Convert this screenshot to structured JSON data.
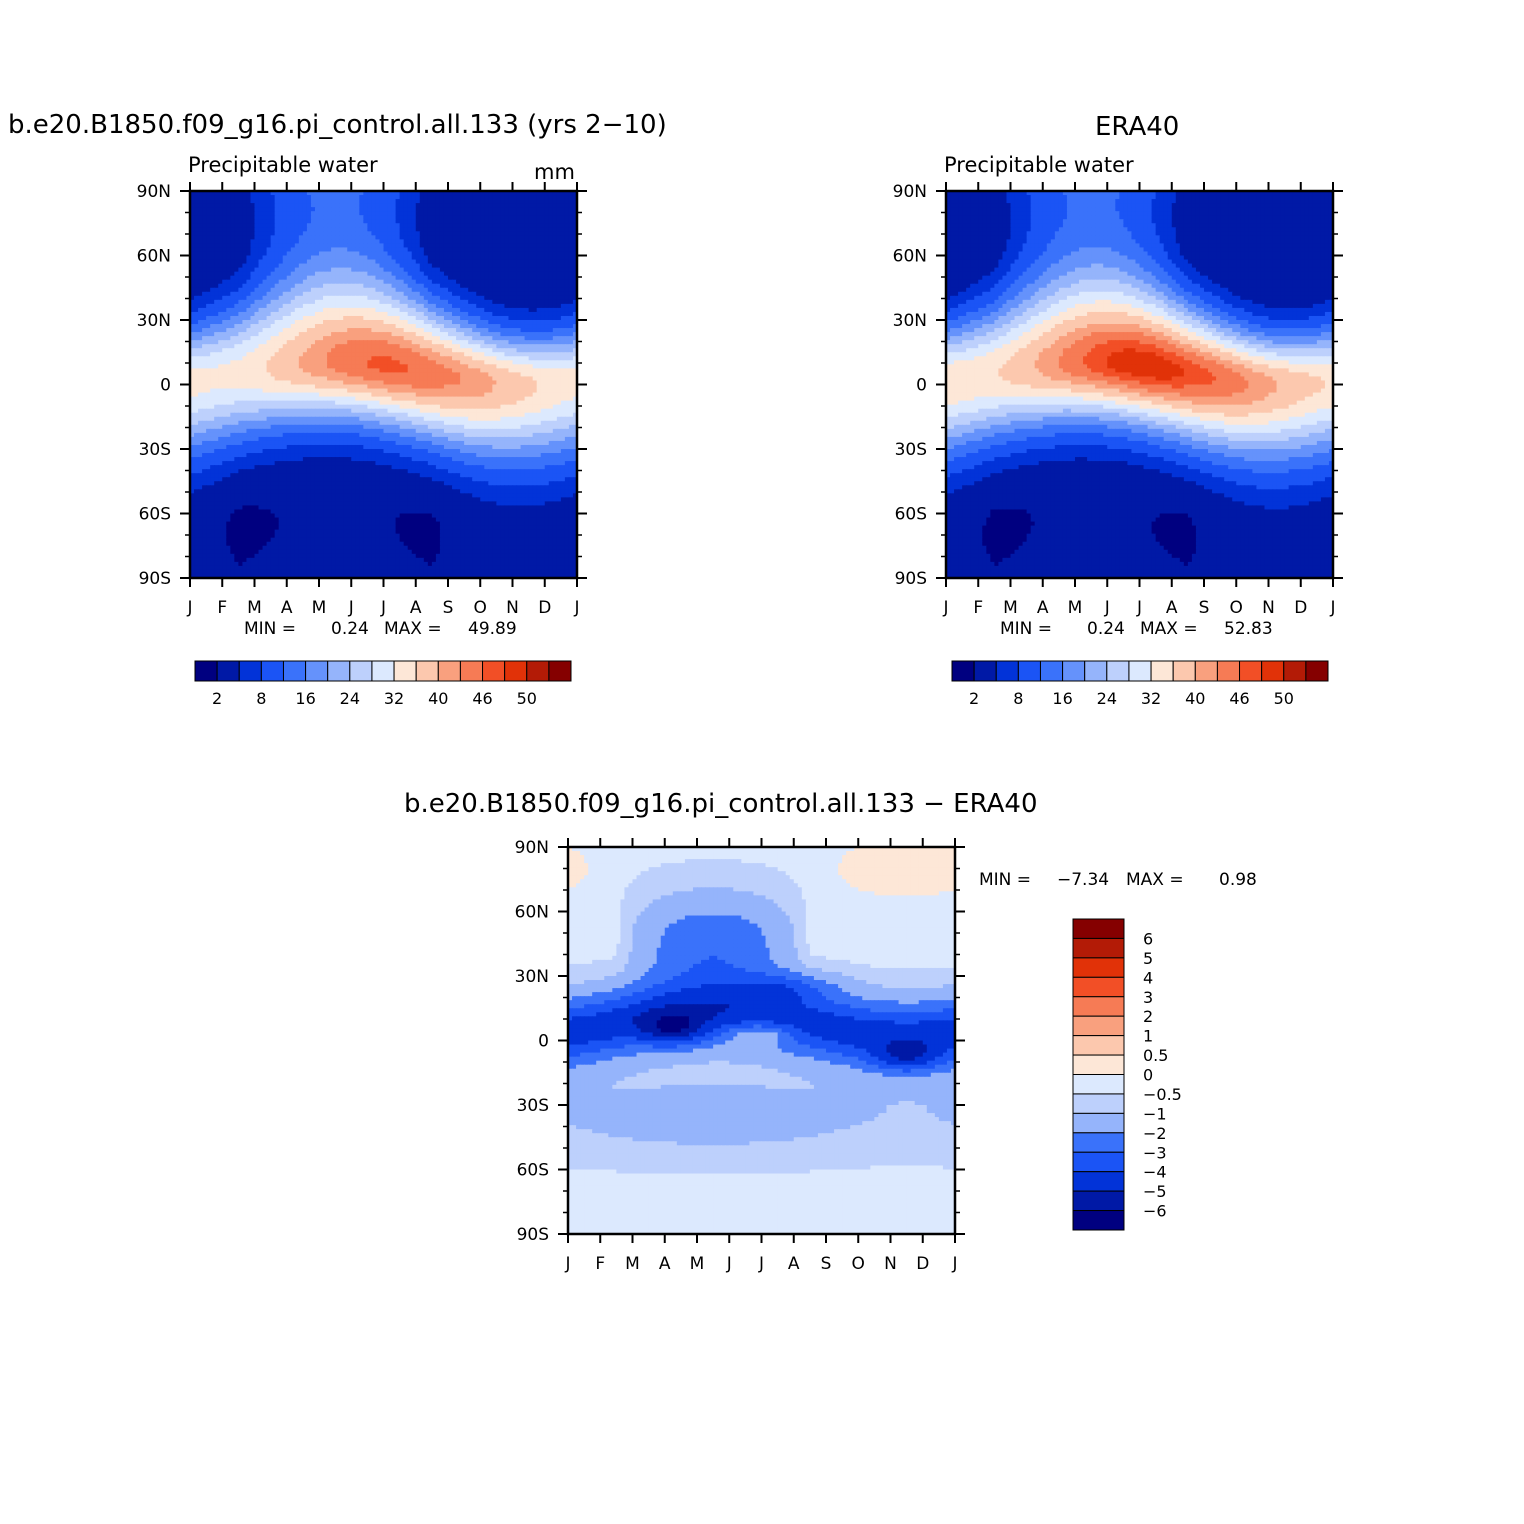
{
  "chart_data": [
    {
      "type": "heatmap",
      "title": "b.e20.B1850.f09_g16.pi_control.all.133 (yrs 2−10)",
      "subtitle": "Precipitable water",
      "units": "mm",
      "x_tick_labels": [
        "J",
        "F",
        "M",
        "A",
        "M",
        "J",
        "J",
        "A",
        "S",
        "O",
        "N",
        "D",
        "J"
      ],
      "y_tick_labels": [
        "90N",
        "60N",
        "30N",
        "0",
        "30S",
        "60S",
        "90S"
      ],
      "y_values": [
        90,
        60,
        30,
        0,
        -30,
        -60,
        -90
      ],
      "min_label": "MIN =",
      "min_value": "0.24",
      "max_label": "MAX =",
      "max_value": "49.89",
      "colorbar_orientation": "horizontal",
      "colorbar_labels": [
        "2",
        "8",
        "16",
        "24",
        "32",
        "40",
        "46",
        "50"
      ],
      "colorbar_colors": [
        "#000080",
        "#0019a6",
        "#0233d8",
        "#1b54f5",
        "#3a72fa",
        "#6592fb",
        "#95b4fb",
        "#bdd0fc",
        "#dce9fe",
        "#fde7d7",
        "#fcc8ae",
        "#f9a07e",
        "#f67b55",
        "#f24f26",
        "#e13208",
        "#b31b06",
        "#850000"
      ],
      "peak_value": 49.89,
      "peak_lat": 9,
      "peak_month_index": 7
    },
    {
      "type": "heatmap",
      "title": "ERA40",
      "subtitle": "Precipitable water",
      "x_tick_labels": [
        "J",
        "F",
        "M",
        "A",
        "M",
        "J",
        "J",
        "A",
        "S",
        "O",
        "N",
        "D",
        "J"
      ],
      "y_tick_labels": [
        "90N",
        "60N",
        "30N",
        "0",
        "30S",
        "60S",
        "90S"
      ],
      "y_values": [
        90,
        60,
        30,
        0,
        -30,
        -60,
        -90
      ],
      "min_label": "MIN =",
      "min_value": "0.24",
      "max_label": "MAX =",
      "max_value": "52.83",
      "colorbar_orientation": "horizontal",
      "colorbar_labels": [
        "2",
        "8",
        "16",
        "24",
        "32",
        "40",
        "46",
        "50"
      ],
      "colorbar_colors": [
        "#000080",
        "#0019a6",
        "#0233d8",
        "#1b54f5",
        "#3a72fa",
        "#6592fb",
        "#95b4fb",
        "#bdd0fc",
        "#dce9fe",
        "#fde7d7",
        "#fcc8ae",
        "#f9a07e",
        "#f67b55",
        "#f24f26",
        "#e13208",
        "#b31b06",
        "#850000"
      ],
      "peak_value": 52.83,
      "peak_lat": 8,
      "peak_month_index": 7
    },
    {
      "type": "heatmap",
      "title": "b.e20.B1850.f09_g16.pi_control.all.133 − ERA40",
      "x_tick_labels": [
        "J",
        "F",
        "M",
        "A",
        "M",
        "J",
        "J",
        "A",
        "S",
        "O",
        "N",
        "D",
        "J"
      ],
      "y_tick_labels": [
        "90N",
        "60N",
        "30N",
        "0",
        "30S",
        "60S",
        "90S"
      ],
      "y_values": [
        90,
        60,
        30,
        0,
        -30,
        -60,
        -90
      ],
      "min_label": "MIN =",
      "min_value": "−7.34",
      "max_label": "MAX =",
      "max_value": "0.98",
      "colorbar_orientation": "vertical",
      "colorbar_levels": [
        "6",
        "5",
        "4",
        "3",
        "2",
        "1",
        "0.5",
        "0",
        "−0.5",
        "−1",
        "−2",
        "−3",
        "−4",
        "−5",
        "−6"
      ],
      "colorbar_colors": [
        "#850000",
        "#b31b06",
        "#e13208",
        "#f24f26",
        "#f67b55",
        "#f9a07e",
        "#fcc8ae",
        "#fde7d7",
        "#dce9fe",
        "#bdd0fc",
        "#95b4fb",
        "#3a72fa",
        "#1b54f5",
        "#0233d8",
        "#0019a6",
        "#000080"
      ],
      "level_values": [
        6,
        5,
        4,
        3,
        2,
        1,
        0.5,
        0,
        -0.5,
        -1,
        -2,
        -3,
        -4,
        -5,
        -6
      ]
    }
  ]
}
